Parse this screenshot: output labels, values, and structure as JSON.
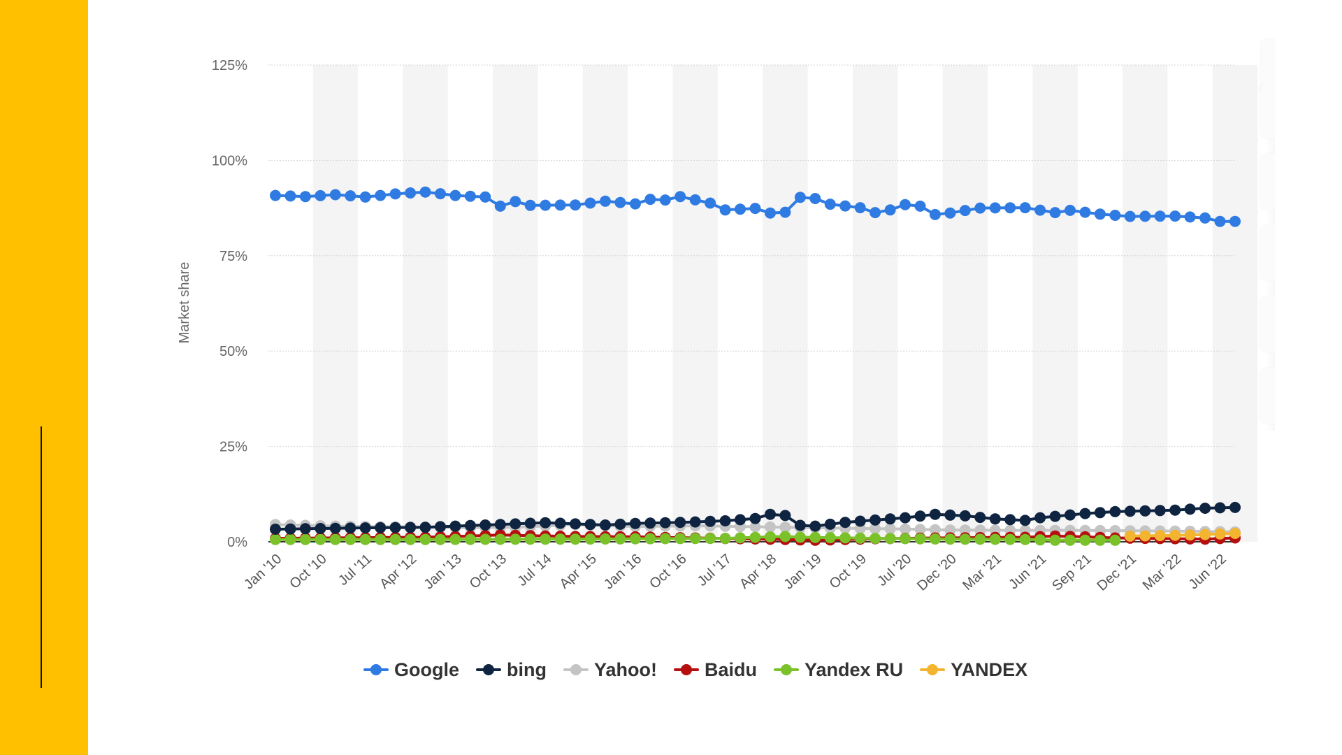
{
  "colors": {
    "sidebar": "#FFC000",
    "grid": "#d5d5d5",
    "band": "#f4f4f4"
  },
  "chart_data": {
    "type": "line",
    "title": "",
    "xlabel": "",
    "ylabel": "Market share",
    "ylim": [
      0,
      125
    ],
    "yticks": [
      "0%",
      "25%",
      "50%",
      "75%",
      "100%",
      "125%"
    ],
    "grid": true,
    "legend_position": "bottom",
    "x_tick_labels": [
      "Jan '10",
      "Oct '10",
      "Jul '11",
      "Apr '12",
      "Jan '13",
      "Oct '13",
      "Jul '14",
      "Apr '15",
      "Jan '16",
      "Oct '16",
      "Jul '17",
      "Apr '18",
      "Jan '19",
      "Oct '19",
      "Jul '20",
      "Dec '20",
      "Mar '21",
      "Jun '21",
      "Sep '21",
      "Dec '21",
      "Mar '22",
      "Jun '22"
    ],
    "x_tick_index": [
      0,
      3,
      6,
      9,
      12,
      15,
      18,
      21,
      24,
      27,
      30,
      33,
      36,
      39,
      42,
      45,
      48,
      51,
      54,
      57,
      60,
      63
    ],
    "num_points": 65,
    "series": [
      {
        "name": "Google",
        "color": "#2F7BE2",
        "anchors": [
          [
            0,
            90.8
          ],
          [
            2,
            90.5
          ],
          [
            4,
            91.0
          ],
          [
            6,
            90.4
          ],
          [
            8,
            91.2
          ],
          [
            10,
            91.7
          ],
          [
            12,
            90.8
          ],
          [
            14,
            90.4
          ],
          [
            15,
            88.0
          ],
          [
            16,
            89.2
          ],
          [
            17,
            88.2
          ],
          [
            20,
            88.3
          ],
          [
            22,
            89.3
          ],
          [
            24,
            88.6
          ],
          [
            25,
            89.8
          ],
          [
            26,
            89.6
          ],
          [
            27,
            90.5
          ],
          [
            29,
            88.8
          ],
          [
            30,
            87.0
          ],
          [
            32,
            87.4
          ],
          [
            33,
            86.2
          ],
          [
            34,
            86.4
          ],
          [
            35,
            90.3
          ],
          [
            36,
            90.0
          ],
          [
            37,
            88.5
          ],
          [
            39,
            87.6
          ],
          [
            40,
            86.3
          ],
          [
            41,
            87.0
          ],
          [
            42,
            88.4
          ],
          [
            43,
            88.0
          ],
          [
            44,
            85.8
          ],
          [
            45,
            86.2
          ],
          [
            47,
            87.5
          ],
          [
            50,
            87.6
          ],
          [
            52,
            86.3
          ],
          [
            53,
            86.9
          ],
          [
            55,
            85.9
          ],
          [
            57,
            85.3
          ],
          [
            60,
            85.4
          ],
          [
            62,
            84.9
          ],
          [
            63,
            84.0
          ],
          [
            64,
            84.0
          ]
        ]
      },
      {
        "name": "bing",
        "color": "#0E2440",
        "anchors": [
          [
            0,
            3.3
          ],
          [
            5,
            3.6
          ],
          [
            10,
            3.8
          ],
          [
            14,
            4.4
          ],
          [
            18,
            5.0
          ],
          [
            22,
            4.4
          ],
          [
            24,
            4.8
          ],
          [
            28,
            5.2
          ],
          [
            30,
            5.5
          ],
          [
            32,
            6.1
          ],
          [
            33,
            7.2
          ],
          [
            34,
            6.9
          ],
          [
            35,
            4.3
          ],
          [
            36,
            4.1
          ],
          [
            38,
            5.1
          ],
          [
            40,
            5.7
          ],
          [
            42,
            6.3
          ],
          [
            44,
            7.2
          ],
          [
            46,
            6.8
          ],
          [
            48,
            6.0
          ],
          [
            50,
            5.6
          ],
          [
            51,
            6.3
          ],
          [
            54,
            7.4
          ],
          [
            56,
            7.9
          ],
          [
            60,
            8.3
          ],
          [
            62,
            8.8
          ],
          [
            64,
            9.0
          ]
        ]
      },
      {
        "name": "Yahoo!",
        "color": "#C4C4C4",
        "anchors": [
          [
            0,
            4.5
          ],
          [
            2,
            4.3
          ],
          [
            4,
            4.1
          ],
          [
            6,
            4.0
          ],
          [
            9,
            3.9
          ],
          [
            12,
            3.7
          ],
          [
            16,
            3.8
          ],
          [
            20,
            4.5
          ],
          [
            24,
            4.0
          ],
          [
            28,
            4.2
          ],
          [
            31,
            4.0
          ],
          [
            34,
            3.8
          ],
          [
            37,
            3.6
          ],
          [
            41,
            3.4
          ],
          [
            45,
            3.1
          ],
          [
            49,
            3.0
          ],
          [
            53,
            3.0
          ],
          [
            57,
            2.9
          ],
          [
            60,
            2.8
          ],
          [
            64,
            2.6
          ]
        ]
      },
      {
        "name": "Baidu",
        "color": "#B50F0F",
        "anchors": [
          [
            0,
            0.9
          ],
          [
            10,
            1.2
          ],
          [
            13,
            1.5
          ],
          [
            15,
            1.8
          ],
          [
            17,
            1.6
          ],
          [
            20,
            1.4
          ],
          [
            24,
            1.3
          ],
          [
            28,
            1.0
          ],
          [
            34,
            0.6
          ],
          [
            36,
            0.4
          ],
          [
            40,
            0.8
          ],
          [
            44,
            1.0
          ],
          [
            50,
            1.2
          ],
          [
            52,
            1.5
          ],
          [
            54,
            1.3
          ],
          [
            56,
            1.0
          ],
          [
            62,
            0.7
          ],
          [
            64,
            1.0
          ]
        ]
      },
      {
        "name": "Yandex RU",
        "color": "#7BC12A",
        "anchors": [
          [
            0,
            0.6
          ],
          [
            10,
            0.6
          ],
          [
            20,
            0.7
          ],
          [
            30,
            0.9
          ],
          [
            33,
            1.3
          ],
          [
            34,
            1.4
          ],
          [
            35,
            1.2
          ],
          [
            40,
            0.9
          ],
          [
            45,
            0.7
          ],
          [
            50,
            0.6
          ],
          [
            52,
            0.4
          ],
          [
            56,
            0.4
          ]
        ]
      },
      {
        "name": "YANDEX",
        "color": "#F3B42F",
        "start": 57,
        "anchors": [
          [
            57,
            1.5
          ],
          [
            60,
            1.7
          ],
          [
            62,
            1.9
          ],
          [
            64,
            2.2
          ]
        ]
      }
    ]
  }
}
